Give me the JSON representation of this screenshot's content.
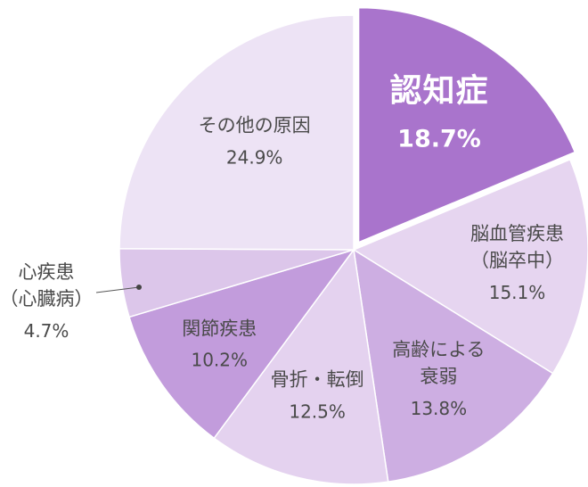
{
  "chart_data": {
    "type": "pie",
    "slices": [
      {
        "name": "認知症",
        "line2": "",
        "value": 18.7,
        "pct_label": "18.7%",
        "color": "#a974cc",
        "exploded": true
      },
      {
        "name": "脳血管疾患",
        "line2": "（脳卒中）",
        "value": 15.1,
        "pct_label": "15.1%",
        "color": "#e6d5f0"
      },
      {
        "name": "高齢による",
        "line2": "衰弱",
        "value": 13.8,
        "pct_label": "13.8%",
        "color": "#cdaee2"
      },
      {
        "name": "骨折・転倒",
        "line2": "",
        "value": 12.5,
        "pct_label": "12.5%",
        "color": "#e4d2ef"
      },
      {
        "name": "関節疾患",
        "line2": "",
        "value": 10.2,
        "pct_label": "10.2%",
        "color": "#c29cdc"
      },
      {
        "name": "心疾患",
        "line2": "（心臓病）",
        "value": 4.7,
        "pct_label": "4.7%",
        "color": "#dcc6ea",
        "external_label": true
      },
      {
        "name": "その他の原因",
        "line2": "",
        "value": 24.9,
        "pct_label": "24.9%",
        "color": "#ede3f5"
      }
    ]
  }
}
